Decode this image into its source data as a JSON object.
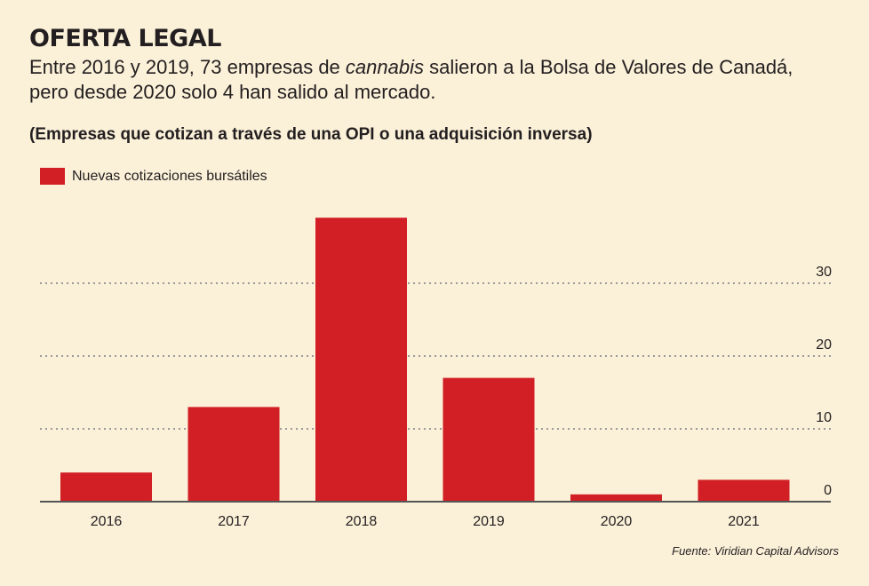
{
  "header": {
    "title": "OFERTA LEGAL",
    "subtitle_part1": "Entre 2016 y 2019, 73 empresas de ",
    "subtitle_italic": "cannabis",
    "subtitle_part2": " salieron a la Bolsa de Valores de Canadá,",
    "subtitle_line2": "pero desde 2020 solo 4 han salido al mercado.",
    "units": "(Empresas que cotizan a través de una OPI o una adquisición inversa)"
  },
  "source": "Fuente: Viridian Capital Advisors",
  "colors": {
    "bar": "#d21f26",
    "grid": "#9a9a9a",
    "axis": "#555555",
    "background": "#fbf0d8"
  },
  "chart_data": {
    "type": "bar",
    "categories": [
      "2016",
      "2017",
      "2018",
      "2019",
      "2020",
      "2021"
    ],
    "series": [
      {
        "name": "Nuevas cotizaciones bursátiles",
        "values": [
          4,
          13,
          39,
          17,
          1,
          3
        ]
      }
    ],
    "ylim": [
      0,
      40
    ],
    "yticks": [
      0,
      10,
      20,
      30
    ],
    "ytick_labels": [
      "0",
      "10",
      "20",
      "30"
    ],
    "grid": "dotted horizontal",
    "y_axis_side": "right",
    "legend_position": "top-left"
  }
}
